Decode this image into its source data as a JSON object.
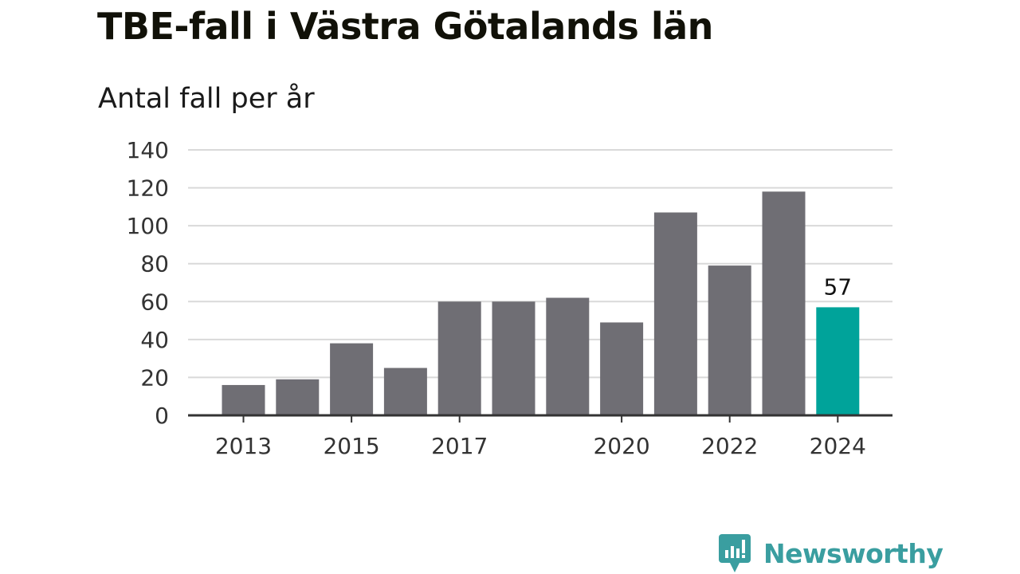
{
  "title": "TBE-fall i Västra Götalands län",
  "subtitle": "Antal fall per år",
  "brand": {
    "name": "Newsworthy",
    "icon": "newsworthy-logo-icon",
    "color": "#3a9ea0"
  },
  "colors": {
    "bar": "#6f6e74",
    "highlight": "#00a39a",
    "grid": "#d9d9d9",
    "axis": "#333333"
  },
  "chart_data": {
    "type": "bar",
    "categories": [
      "2013",
      "2014",
      "2015",
      "2016",
      "2017",
      "2018",
      "2019",
      "2020",
      "2021",
      "2022",
      "2023",
      "2024"
    ],
    "values": [
      16,
      19,
      38,
      25,
      60,
      60,
      62,
      49,
      107,
      79,
      118,
      57
    ],
    "highlight_index": 11,
    "data_labels": [
      {
        "category": "2024",
        "text": "57"
      }
    ],
    "x_tick_labels": [
      "2013",
      "2015",
      "2017",
      "2020",
      "2022",
      "2024"
    ],
    "y_ticks": [
      0,
      20,
      40,
      60,
      80,
      100,
      120,
      140
    ],
    "ylim": [
      0,
      140
    ],
    "grid": true,
    "xlabel": "",
    "ylabel": ""
  }
}
